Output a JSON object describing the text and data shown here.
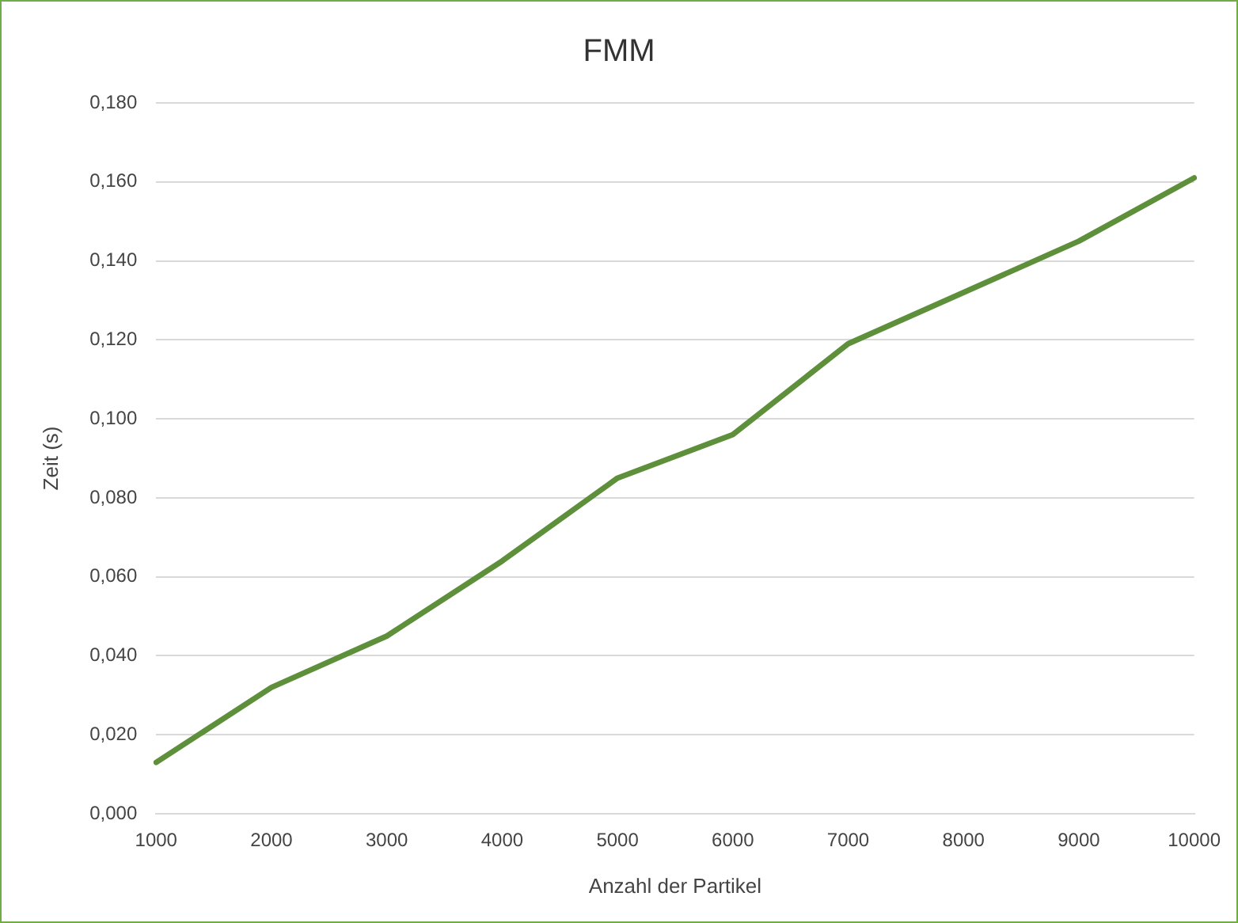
{
  "chart_data": {
    "type": "line",
    "title": "FMM",
    "xlabel": "Anzahl der Partikel",
    "ylabel": "Zeit (s)",
    "categories": [
      "1000",
      "2000",
      "3000",
      "4000",
      "5000",
      "6000",
      "7000",
      "8000",
      "9000",
      "10000"
    ],
    "series": [
      {
        "color": "#5e8f3a",
        "values": [
          0.013,
          0.032,
          0.045,
          0.064,
          0.085,
          0.096,
          0.119,
          0.132,
          0.145,
          0.161
        ]
      }
    ],
    "ylim": [
      0,
      0.18
    ],
    "yticks": [
      {
        "value": 0,
        "label": "0,000"
      },
      {
        "value": 0.02,
        "label": "0,020"
      },
      {
        "value": 0.04,
        "label": "0,040"
      },
      {
        "value": 0.06,
        "label": "0,060"
      },
      {
        "value": 0.08,
        "label": "0,080"
      },
      {
        "value": 0.1,
        "label": "0,100"
      },
      {
        "value": 0.12,
        "label": "0,120"
      },
      {
        "value": 0.14,
        "label": "0,140"
      },
      {
        "value": 0.16,
        "label": "0,160"
      },
      {
        "value": 0.18,
        "label": "0,180"
      }
    ],
    "grid": "y",
    "legend": false,
    "marker": "none",
    "line_style": "solid"
  }
}
